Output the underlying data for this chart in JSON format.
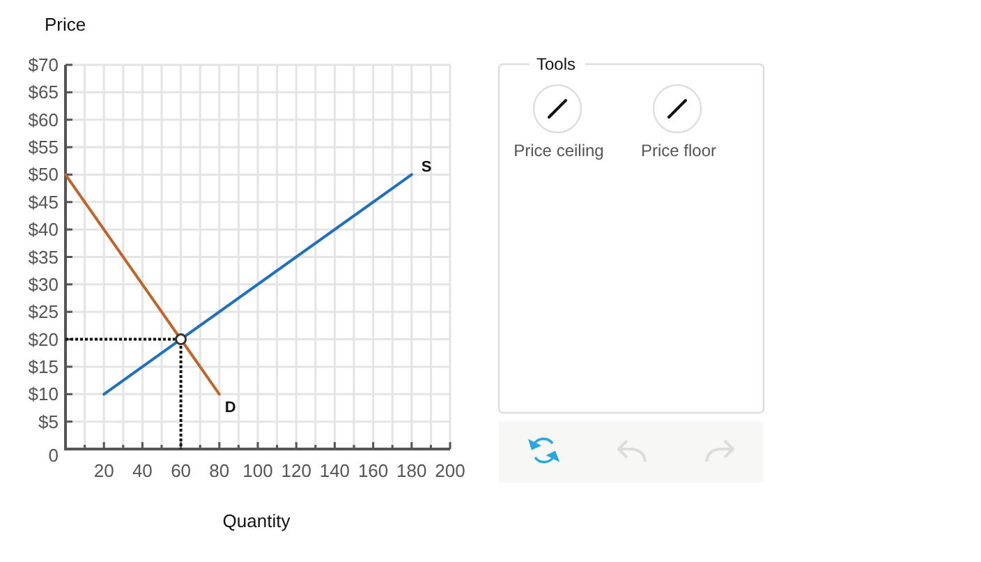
{
  "chart_data": [
    {
      "type": "line",
      "xlabel": "Quantity",
      "ylabel": "Price",
      "xlim": [
        0,
        200
      ],
      "ylim": [
        0,
        70
      ],
      "xticks": [
        {
          "value": 10,
          "label": null
        },
        20,
        {
          "value": 30,
          "label": null
        },
        40,
        {
          "value": 50,
          "label": null
        },
        60,
        {
          "value": 70,
          "label": null
        },
        80,
        {
          "value": 90,
          "label": null
        },
        100,
        {
          "value": 110,
          "label": null
        },
        120,
        {
          "value": 130,
          "label": null
        },
        140,
        {
          "value": 150,
          "label": null
        },
        160,
        {
          "value": 170,
          "label": null
        },
        180,
        {
          "value": 190,
          "label": null
        },
        200
      ],
      "yticks": [
        {
          "value": 0,
          "label": "0"
        },
        {
          "value": 5,
          "label": "$5"
        },
        {
          "value": 10,
          "label": "$10"
        },
        {
          "value": 15,
          "label": "$15"
        },
        {
          "value": 20,
          "label": "$20"
        },
        {
          "value": 25,
          "label": "$25"
        },
        {
          "value": 30,
          "label": "$30"
        },
        {
          "value": 35,
          "label": "$35"
        },
        {
          "value": 40,
          "label": "$40"
        },
        {
          "value": 45,
          "label": "$45"
        },
        {
          "value": 50,
          "label": "$50"
        },
        {
          "value": 55,
          "label": "$55"
        },
        {
          "value": 60,
          "label": "$60"
        },
        {
          "value": 65,
          "label": "$65"
        },
        {
          "value": 70,
          "label": "$70"
        }
      ],
      "grid": true,
      "series": [
        {
          "name": "D",
          "color": "#c0642a",
          "x": [
            0,
            80
          ],
          "values": [
            50,
            10
          ]
        },
        {
          "name": "S",
          "color": "#1f70c1",
          "x": [
            20,
            180
          ],
          "values": [
            10,
            50
          ]
        },
        {
          "color": "#111111",
          "x": [
            0,
            60,
            60
          ],
          "values": [
            20,
            20,
            0
          ],
          "line_style": "dotted"
        },
        {
          "type": "scatter",
          "color": "#333333",
          "x": [
            60
          ],
          "values": [
            20
          ],
          "marker": "circle"
        }
      ]
    },
    {
      "type": "other",
      "title": "Tools",
      "annotations": [
        "Price ceiling",
        "Price floor"
      ]
    }
  ]
}
